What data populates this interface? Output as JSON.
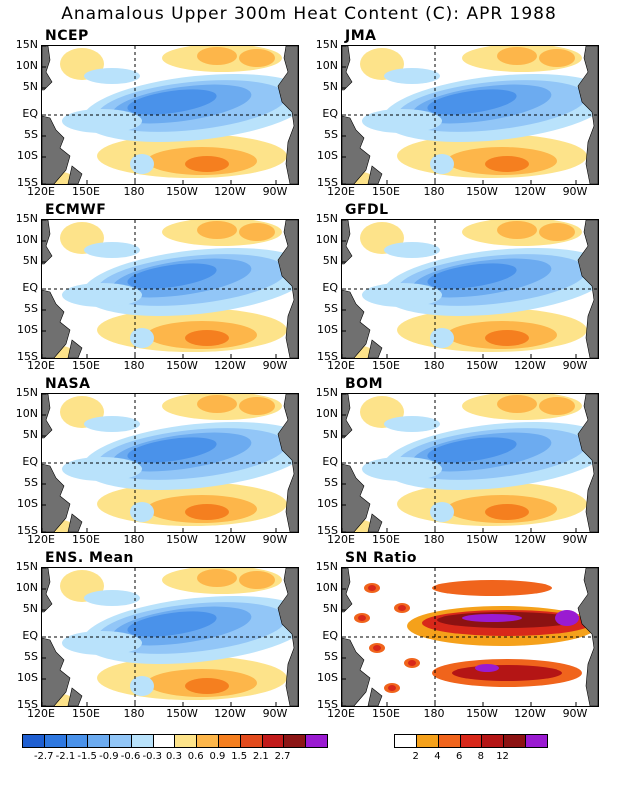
{
  "title": "Anamalous Upper 300m Heat Content (C): APR 1988",
  "lat_labels": [
    "15N",
    "10N",
    "5N",
    "EQ",
    "5S",
    "10S",
    "15S"
  ],
  "lon_labels": [
    "120E",
    "150E",
    "180",
    "150W",
    "120W",
    "90W"
  ],
  "panels": [
    {
      "id": "ncep",
      "title": "NCEP",
      "kind": "anom"
    },
    {
      "id": "jma",
      "title": "JMA",
      "kind": "anom"
    },
    {
      "id": "ecmwf",
      "title": "ECMWF",
      "kind": "anom"
    },
    {
      "id": "gfdl",
      "title": "GFDL",
      "kind": "anom"
    },
    {
      "id": "nasa",
      "title": "NASA",
      "kind": "anom"
    },
    {
      "id": "bom",
      "title": "BOM",
      "kind": "anom"
    },
    {
      "id": "ens",
      "title": "ENS. Mean",
      "kind": "anom"
    },
    {
      "id": "sn",
      "title": "SN Ratio",
      "kind": "sn"
    }
  ],
  "colorbar_anom": {
    "colors": [
      "#1f5fd1",
      "#2f78e0",
      "#4a92ea",
      "#6cabf0",
      "#92c6f7",
      "#b9e2fb",
      "#ffffff",
      "#fde38a",
      "#fdb64a",
      "#f57f1f",
      "#e24b1d",
      "#c21b1b",
      "#8c1616",
      "#9a1bd1"
    ],
    "labels": [
      "-2.7",
      "-2.1",
      "-1.5",
      "-0.9",
      "-0.6",
      "-0.3",
      "0.3",
      "0.6",
      "0.9",
      "1.5",
      "2.1",
      "2.7"
    ]
  },
  "colorbar_sn": {
    "colors": [
      "#ffffff",
      "#f5a11b",
      "#f0641c",
      "#d8281a",
      "#b41515",
      "#8c1212",
      "#9a1bd1"
    ],
    "labels": [
      "2",
      "4",
      "6",
      "8",
      "12"
    ]
  }
}
